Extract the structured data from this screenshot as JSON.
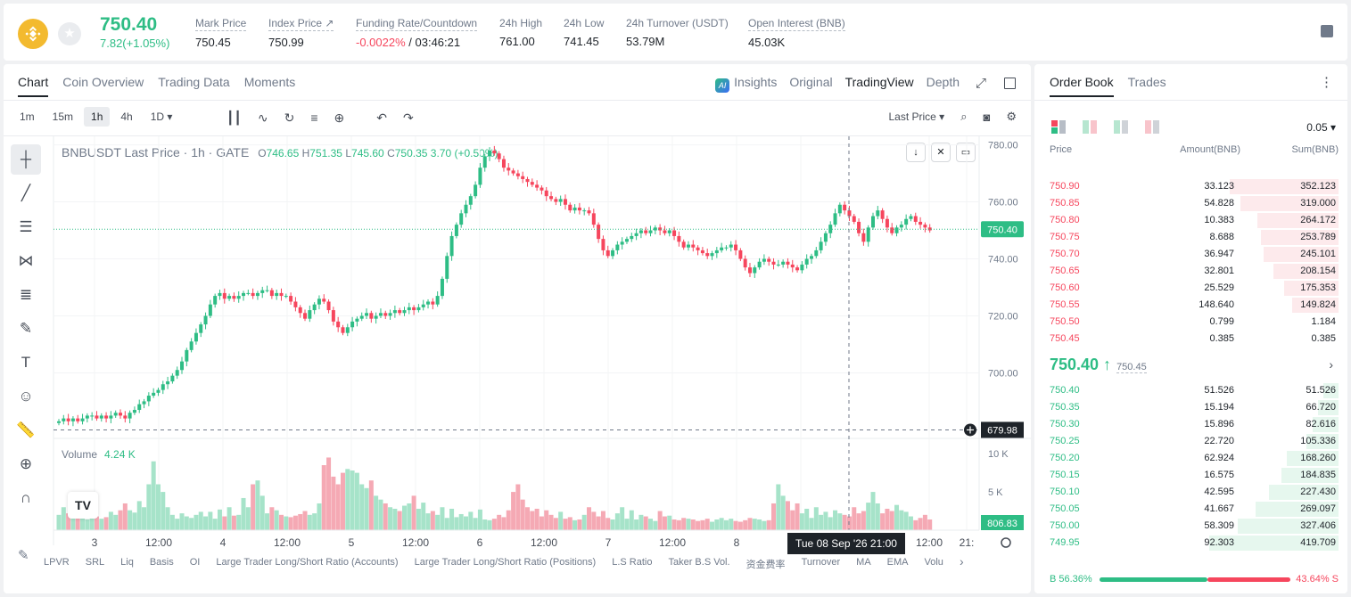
{
  "ticker": {
    "last_price": "750.40",
    "change": "7.82(+1.05%)",
    "stats": [
      {
        "label": "Mark Price",
        "value": "750.45"
      },
      {
        "label": "Index Price ↗",
        "value": "750.99"
      },
      {
        "label": "Funding Rate/Countdown",
        "value": "-0.0022%",
        "value2": " / 03:46:21"
      },
      {
        "label": "24h High",
        "value": "761.00"
      },
      {
        "label": "24h Low",
        "value": "741.45"
      },
      {
        "label": "24h Turnover (USDT)",
        "value": "53.79M"
      },
      {
        "label": "Open Interest (BNB)",
        "value": "45.03K"
      }
    ]
  },
  "tabs": [
    "Chart",
    "Coin Overview",
    "Trading Data",
    "Moments"
  ],
  "view_tabs": {
    "insights": "Insights",
    "original": "Original",
    "tradingview": "TradingView",
    "depth": "Depth",
    "ai_badge": "AI"
  },
  "intervals": [
    "1m",
    "15m",
    "1h",
    "4h",
    "1D ▾"
  ],
  "price_type": "Last Price ▾",
  "legend": {
    "symbol": "BNBUSDT Last Price · 1h · GATE",
    "o": "746.65",
    "h": "751.35",
    "l": "745.60",
    "c": "750.35",
    "chg": "3.70 (+0.50%)"
  },
  "volume_legend": {
    "label": "Volume",
    "value": "4.24 K"
  },
  "tv_logo": "TV",
  "crosshair_time": "Tue 08 Sep '26   21:00",
  "chart_data": {
    "type": "candlestick",
    "title": "BNBUSDT Last Price · 1h · GATE",
    "x_ticks": [
      "3",
      "12:00",
      "4",
      "12:00",
      "5",
      "12:00",
      "6",
      "12:00",
      "7",
      "12:00",
      "8",
      "12:00",
      "12:00",
      "21:"
    ],
    "y_ticks": [
      "780.00",
      "760.00",
      "740.00",
      "720.00",
      "700.00"
    ],
    "ylim": [
      677,
      783
    ],
    "last_price_label": "750.40",
    "crosshair_price_label": "679.98",
    "volume_y_ticks": [
      "10 K",
      "5 K"
    ],
    "volume_label": "806.83",
    "price_path": [
      683,
      684,
      683,
      684,
      683,
      684,
      685,
      685,
      684,
      685,
      684,
      685,
      686,
      685,
      684,
      686,
      687,
      689,
      690,
      692,
      693,
      694,
      696,
      697,
      699,
      701,
      704,
      708,
      711,
      714,
      717,
      720,
      724,
      727,
      728,
      726,
      727,
      726,
      727,
      728,
      728,
      727,
      728,
      729,
      729,
      727,
      728,
      727,
      727,
      725,
      723,
      721,
      719,
      722,
      724,
      726,
      725,
      722,
      718,
      716,
      714,
      716,
      718,
      719,
      720,
      721,
      719,
      720,
      721,
      720,
      721,
      722,
      721,
      722,
      723,
      722,
      723,
      724,
      725,
      724,
      727,
      733,
      741,
      748,
      752,
      756,
      759,
      762,
      766,
      772,
      776,
      778,
      777,
      775,
      772,
      771,
      770,
      769,
      768,
      767,
      766,
      765,
      764,
      762,
      761,
      760,
      761,
      759,
      757,
      758,
      757,
      757,
      756,
      752,
      747,
      743,
      741,
      743,
      745,
      746,
      747,
      748,
      749,
      750,
      749,
      750,
      751,
      750,
      749,
      750,
      748,
      746,
      744,
      745,
      744,
      743,
      742,
      741,
      742,
      743,
      744,
      744,
      745,
      743,
      740,
      737,
      735,
      737,
      739,
      740,
      739,
      738,
      738,
      739,
      738,
      737,
      736,
      738,
      740,
      741,
      743,
      746,
      749,
      752,
      756,
      759,
      757,
      755,
      753,
      749,
      746,
      751,
      755,
      757,
      754,
      751,
      749,
      751,
      752,
      754,
      755,
      753,
      752,
      751,
      750
    ],
    "volume_values": [
      2000,
      3000,
      2200,
      1800,
      2500,
      1600,
      1400,
      2000,
      1800,
      1500,
      1700,
      2400,
      2000,
      2600,
      3500,
      2600,
      2300,
      3800,
      3000,
      6000,
      9000,
      6000,
      5000,
      3000,
      2000,
      1500,
      2200,
      1800,
      1600,
      2000,
      2400,
      1800,
      2400,
      1500,
      2700,
      1800,
      3000,
      1900,
      2000,
      4200,
      3000,
      6000,
      6500,
      4500,
      2200,
      3000,
      2600,
      2000,
      1800,
      1700,
      1900,
      2100,
      2500,
      2000,
      2200,
      3500,
      8500,
      9500,
      7000,
      6000,
      7500,
      8000,
      7800,
      7500,
      6000,
      5500,
      6500,
      4500,
      4000,
      3500,
      3000,
      2800,
      2500,
      3200,
      3500,
      4500,
      2800,
      3600,
      2200,
      2500,
      2000,
      3000,
      1600,
      2800,
      1700,
      2100,
      1800,
      2400,
      1600,
      2700,
      1400,
      1300,
      1500,
      2000,
      1700,
      2600,
      5000,
      6000,
      4000,
      3000,
      2500,
      2800,
      1800,
      2600,
      2000,
      1600,
      2400,
      1500,
      1700,
      1300,
      1400,
      2000,
      3000,
      2400,
      1800,
      2500,
      1600,
      1400,
      2200,
      3000,
      1500,
      2600,
      1400,
      2000,
      1800,
      1500,
      1200,
      2500,
      1800,
      1900,
      1400,
      1300,
      1600,
      1500,
      1400,
      1200,
      1300,
      1500,
      1100,
      1400,
      1600,
      1300,
      1500,
      1200,
      1100,
      1300,
      1600,
      1500,
      1400,
      1200,
      1300,
      3500,
      6000,
      4500,
      3800,
      2600,
      3500,
      2200,
      2800,
      1600,
      3000,
      2000,
      2400,
      1700,
      2600,
      2200,
      2000,
      1800,
      3000,
      2200,
      2500,
      3600,
      5000,
      3500,
      2200,
      2800,
      2500,
      3300,
      2600,
      2400,
      1800,
      1300,
      1600,
      2000,
      1400,
      1200,
      2500,
      1800,
      1400,
      1600,
      2000,
      1500,
      2500,
      1200,
      1000
    ]
  },
  "indicators": [
    "LPVR",
    "SRL",
    "Liq",
    "Basis",
    "OI",
    "Large Trader Long/Short Ratio (Accounts)",
    "Large Trader Long/Short Ratio (Positions)",
    "L.S Ratio",
    "Taker B.S Vol.",
    "资金费率",
    "Turnover",
    "MA",
    "EMA",
    "Volu"
  ],
  "book": {
    "tabs": [
      "Order Book",
      "Trades"
    ],
    "tick": "0.05 ▾",
    "headers": {
      "price": "Price",
      "amount": "Amount(BNB)",
      "sum": "Sum(BNB)"
    },
    "asks": [
      {
        "price": "750.90",
        "amount": "33.123",
        "sum": "352.123",
        "depth": 0.84
      },
      {
        "price": "750.85",
        "amount": "54.828",
        "sum": "319.000",
        "depth": 0.76
      },
      {
        "price": "750.80",
        "amount": "10.383",
        "sum": "264.172",
        "depth": 0.63
      },
      {
        "price": "750.75",
        "amount": "8.688",
        "sum": "253.789",
        "depth": 0.6
      },
      {
        "price": "750.70",
        "amount": "36.947",
        "sum": "245.101",
        "depth": 0.58
      },
      {
        "price": "750.65",
        "amount": "32.801",
        "sum": "208.154",
        "depth": 0.5
      },
      {
        "price": "750.60",
        "amount": "25.529",
        "sum": "175.353",
        "depth": 0.42
      },
      {
        "price": "750.55",
        "amount": "148.640",
        "sum": "149.824",
        "depth": 0.36
      },
      {
        "price": "750.50",
        "amount": "0.799",
        "sum": "1.184",
        "depth": 0.0
      },
      {
        "price": "750.45",
        "amount": "0.385",
        "sum": "0.385",
        "depth": 0.0
      }
    ],
    "mid_price": "750.40 ↑",
    "mark": "750.45",
    "bids": [
      {
        "price": "750.40",
        "amount": "51.526",
        "sum": "51.526",
        "depth": 0.12
      },
      {
        "price": "750.35",
        "amount": "15.194",
        "sum": "66.720",
        "depth": 0.16
      },
      {
        "price": "750.30",
        "amount": "15.896",
        "sum": "82.616",
        "depth": 0.2
      },
      {
        "price": "750.25",
        "amount": "22.720",
        "sum": "105.336",
        "depth": 0.25
      },
      {
        "price": "750.20",
        "amount": "62.924",
        "sum": "168.260",
        "depth": 0.4
      },
      {
        "price": "750.15",
        "amount": "16.575",
        "sum": "184.835",
        "depth": 0.44
      },
      {
        "price": "750.10",
        "amount": "42.595",
        "sum": "227.430",
        "depth": 0.54
      },
      {
        "price": "750.05",
        "amount": "41.667",
        "sum": "269.097",
        "depth": 0.64
      },
      {
        "price": "750.00",
        "amount": "58.309",
        "sum": "327.406",
        "depth": 0.78
      },
      {
        "price": "749.95",
        "amount": "92.303",
        "sum": "419.709",
        "depth": 1.0
      }
    ],
    "buy_ratio": "B 56.36%",
    "sell_ratio": "43.64% S",
    "buy_pct": 56.36
  }
}
